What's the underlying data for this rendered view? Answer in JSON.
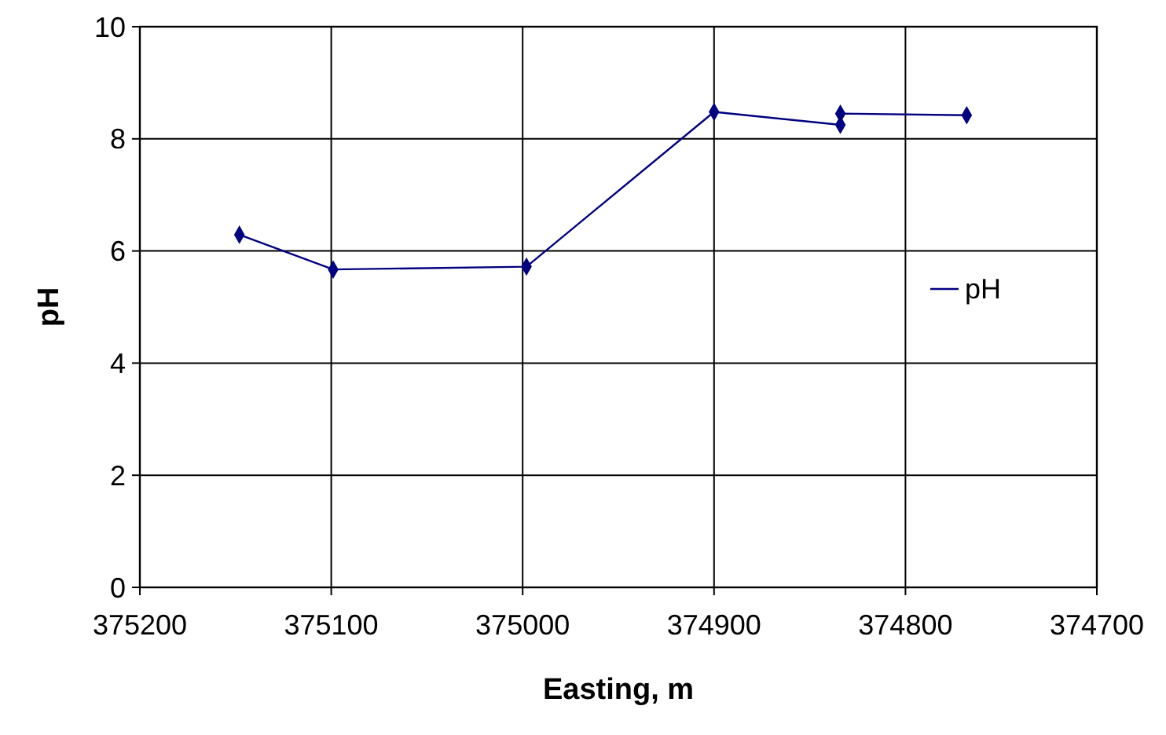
{
  "chart_data": {
    "type": "line",
    "xlabel": "Easting, m",
    "ylabel": "pH",
    "x": [
      375148,
      375099,
      374998,
      374900,
      374834,
      374834,
      374768
    ],
    "series": [
      {
        "name": "pH",
        "color": "#000080",
        "values": [
          6.29,
          5.67,
          5.72,
          8.48,
          8.25,
          8.45,
          8.42
        ]
      }
    ],
    "xlim": [
      375200,
      374700
    ],
    "xticks": [
      375200,
      375100,
      375000,
      374900,
      374800,
      374700
    ],
    "ylim": [
      0,
      10
    ],
    "yticks": [
      0,
      2,
      4,
      6,
      8,
      10
    ],
    "grid": true,
    "legend": "right",
    "marker": "diamond"
  }
}
